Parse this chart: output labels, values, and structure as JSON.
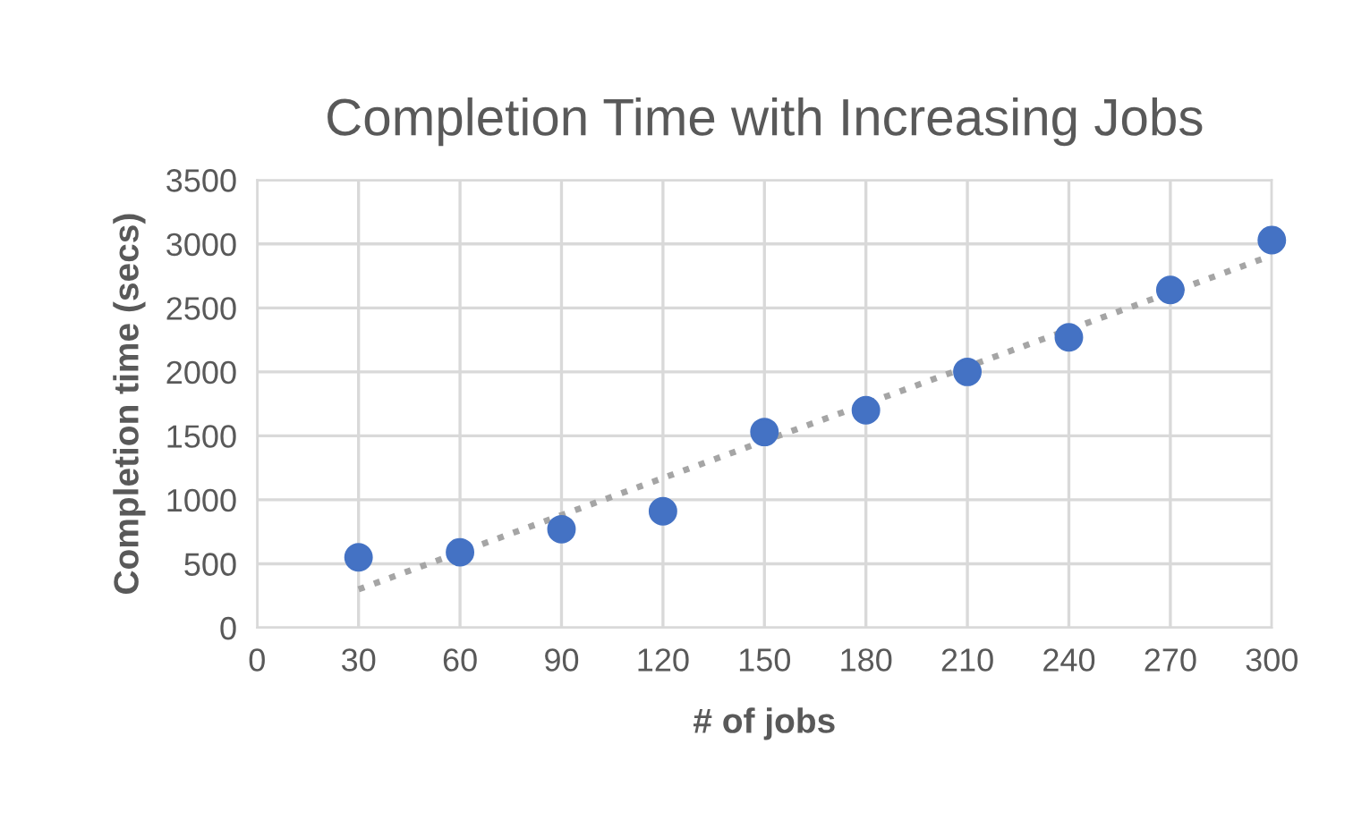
{
  "chart_data": {
    "type": "scatter",
    "title": "Completion Time with Increasing Jobs",
    "xlabel": "# of jobs",
    "ylabel": "Completion time (secs)",
    "series": [
      {
        "color": "#4472c4",
        "x": [
          30,
          60,
          90,
          120,
          150,
          180,
          210,
          240,
          270,
          300
        ],
        "values": [
          550,
          590,
          770,
          910,
          1530,
          1700,
          2000,
          2270,
          2640,
          3030
        ],
        "marker": "circle"
      },
      {
        "type": "line",
        "color": "#a5a5a5",
        "x": [
          30,
          300
        ],
        "values": [
          300,
          2910
        ],
        "line_style": "dotted",
        "marker": "none"
      }
    ],
    "xlim": [
      0,
      300
    ],
    "xticks": [
      0,
      30,
      60,
      90,
      120,
      150,
      180,
      210,
      240,
      270,
      300
    ],
    "ylim": [
      0,
      3500
    ],
    "yticks": [
      0,
      500,
      1000,
      1500,
      2000,
      2500,
      3000,
      3500
    ],
    "grid": true,
    "legend": false
  }
}
